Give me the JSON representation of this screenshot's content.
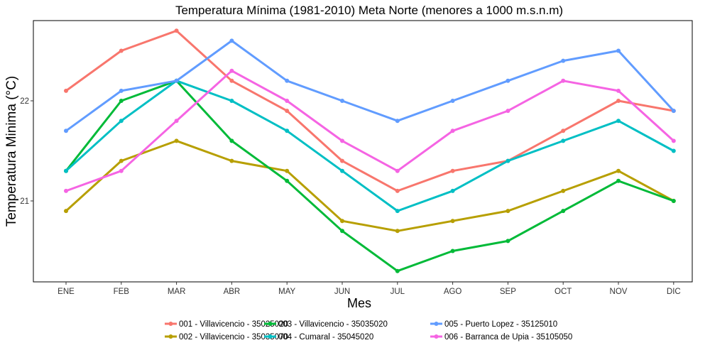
{
  "chart_data": {
    "type": "line",
    "title": "Temperatura Mínima (1981-2010) Meta Norte (menores a 1000 m.s.n.m)",
    "xlabel": "Mes",
    "ylabel": "Temperatura Minima (°C)",
    "categories": [
      "ENE",
      "FEB",
      "MAR",
      "ABR",
      "MAY",
      "JUN",
      "JUL",
      "AGO",
      "SEP",
      "OCT",
      "NOV",
      "DIC"
    ],
    "yticks": [
      21,
      22
    ],
    "ylim": [
      20.2,
      22.7
    ],
    "grid": false,
    "legend_position": "bottom",
    "series": [
      {
        "name": "001 - Villavicencio - 35025020",
        "color": "#F8766D",
        "values": [
          22.1,
          22.5,
          22.7,
          22.2,
          21.9,
          21.4,
          21.1,
          21.3,
          21.4,
          21.7,
          22.0,
          21.9
        ]
      },
      {
        "name": "002 - Villavicencio - 35035070",
        "color": "#B79F00",
        "values": [
          20.9,
          21.4,
          21.6,
          21.4,
          21.3,
          20.8,
          20.7,
          20.8,
          20.9,
          21.1,
          21.3,
          21.0
        ]
      },
      {
        "name": "003 - Villavicencio - 35035020",
        "color": "#00BA38",
        "values": [
          21.3,
          22.0,
          22.2,
          21.6,
          21.2,
          20.7,
          20.3,
          20.5,
          20.6,
          20.9,
          21.2,
          21.0
        ]
      },
      {
        "name": "004 - Cumaral - 35045020",
        "color": "#00BFC4",
        "values": [
          21.3,
          21.8,
          22.2,
          22.0,
          21.7,
          21.3,
          20.9,
          21.1,
          21.4,
          21.6,
          21.8,
          21.5
        ]
      },
      {
        "name": "005 - Puerto Lopez - 35125010",
        "color": "#619CFF",
        "values": [
          21.7,
          22.1,
          22.2,
          22.6,
          22.2,
          22.0,
          21.8,
          22.0,
          22.2,
          22.4,
          22.5,
          21.9
        ]
      },
      {
        "name": "006 - Barranca de Upia - 35105050",
        "color": "#F564E3",
        "values": [
          21.1,
          21.3,
          21.8,
          22.3,
          22.0,
          21.6,
          21.3,
          21.7,
          21.9,
          22.2,
          22.1,
          21.6
        ]
      }
    ]
  }
}
